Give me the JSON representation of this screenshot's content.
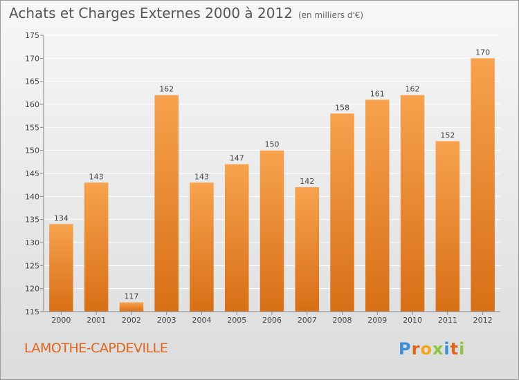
{
  "title": "Achats et Charges Externes 2000 à 2012",
  "unit": "(en milliers d'€)",
  "commune": "LAMOTHE-CAPDEVILLE",
  "logo": {
    "text": "Proxiti",
    "letters": [
      {
        "char": "P",
        "color": "#3a8fd6"
      },
      {
        "char": "r",
        "color": "#e0641c"
      },
      {
        "char": "o",
        "color": "#f2a81d"
      },
      {
        "char": "x",
        "color": "#8cc63f"
      },
      {
        "char": "i",
        "color": "#3a8fd6"
      },
      {
        "char": "t",
        "color": "#e0641c"
      },
      {
        "char": "i",
        "color": "#8cc63f"
      }
    ]
  },
  "colors": {
    "bar_top": "#f7a24e",
    "bar_bottom": "#d86f16",
    "grid": "#ffffff",
    "axis_text": "#444444"
  },
  "chart_data": {
    "type": "bar",
    "title": "Achats et Charges Externes 2000 à 2012",
    "categories": [
      "2000",
      "2001",
      "2002",
      "2003",
      "2004",
      "2005",
      "2006",
      "2007",
      "2008",
      "2009",
      "2010",
      "2011",
      "2012"
    ],
    "values": [
      134,
      143,
      117,
      162,
      143,
      147,
      150,
      142,
      158,
      161,
      162,
      152,
      170
    ],
    "ylim": [
      115,
      175
    ],
    "yticks": [
      115,
      120,
      125,
      130,
      135,
      140,
      145,
      150,
      155,
      160,
      165,
      170,
      175
    ],
    "grid": true,
    "xlabel": "",
    "ylabel": ""
  }
}
